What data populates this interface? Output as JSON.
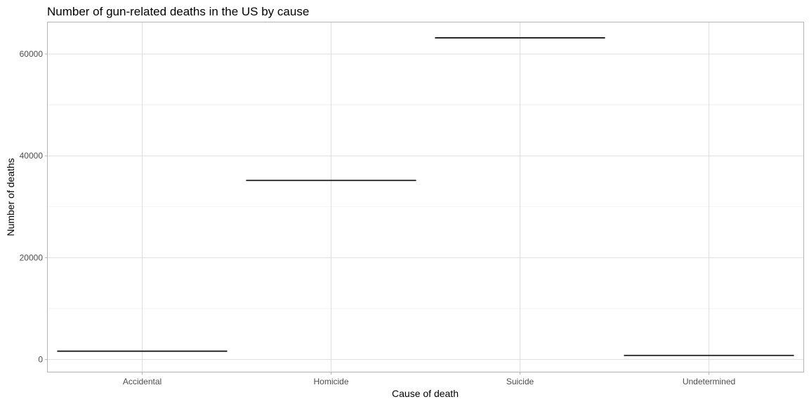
{
  "chart_data": {
    "type": "bar",
    "title": "Number of gun-related deaths in the US by cause",
    "xlabel": "Cause of death",
    "ylabel": "Number of deaths",
    "categories": [
      "Accidental",
      "Homicide",
      "Suicide",
      "Undetermined"
    ],
    "values": [
      1639,
      35176,
      63175,
      807
    ],
    "ylim": [
      -2400,
      66200
    ],
    "yticks": [
      0,
      20000,
      40000,
      60000
    ],
    "ytick_labels": [
      "0",
      "20000",
      "40000",
      "60000"
    ],
    "grid": true,
    "legend": "none",
    "colors": {
      "mark": "#1a1a1a",
      "grid_major": "#dedede",
      "grid_minor": "#ededed",
      "border": "#b3b3b3"
    }
  }
}
